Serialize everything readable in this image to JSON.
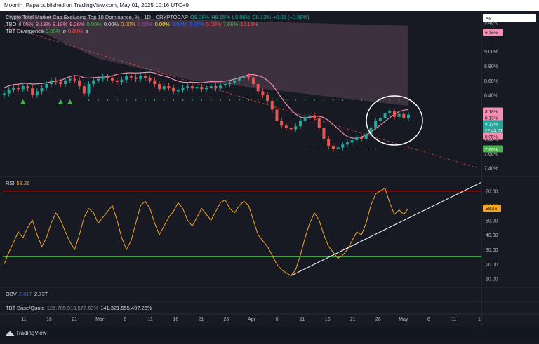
{
  "header": {
    "published": "Moonin_Papa published on TradingView.com, May 01, 2025 10:16 UTC+9"
  },
  "legend_main": {
    "title": "Crypto Total Market Cap Excluding Top 10 Dominance, % · 1D · CRYPTOCAP",
    "ohlc": [
      "O8.08%",
      "H8.15%",
      "L8.06%",
      "C8.13%",
      "+0.05 (+0.56%)"
    ],
    "tbo_label": "TBO",
    "tbo_values": [
      "8.05%",
      "8.13%",
      "8.18%",
      "9.26%",
      "0.00%",
      "0.00%",
      "0.00%",
      "0.00%",
      "0.00%",
      "0.00%",
      "0.00%",
      "0.00%",
      "7.66%",
      "12.15%"
    ],
    "tbt_label": "TBT Divergence",
    "tbt_values": [
      "0.00%",
      "ø",
      "0.00%",
      "ø"
    ]
  },
  "legend_rsi": {
    "label": "RSI",
    "value": "58.26"
  },
  "legend_obv": {
    "label": "OBV",
    "values": [
      "2.81T",
      "2.73T"
    ]
  },
  "legend_tbt_base": {
    "label": "TBT Base/Quote",
    "values": [
      "126,705,916,577.63%",
      "141,321,555,497.26%"
    ]
  },
  "price_axis": {
    "unit": "%",
    "ticks": [
      "9.40%",
      "9.00%",
      "8.80%",
      "8.60%",
      "8.40%",
      "7.80%",
      "7.60%",
      "7.40%"
    ],
    "badges": [
      {
        "text": "9.26%",
        "color": "#f48fb1",
        "textColor": "#131722"
      },
      {
        "text": "8.18%",
        "color": "#f48fb1",
        "textColor": "#131722"
      },
      {
        "text": "8.13%",
        "color": "#f48fb1",
        "textColor": "#131722"
      },
      {
        "text": "8.13%",
        "color": "#26a69a",
        "textColor": "#ffffff"
      },
      {
        "text": "22:43:51",
        "color": "#26a69a",
        "textColor": "#ffffff"
      },
      {
        "text": "8.05%",
        "color": "#f48fb1",
        "textColor": "#131722"
      },
      {
        "text": "7.66%",
        "color": "#4caf50",
        "textColor": "#ffffff"
      }
    ]
  },
  "rsi_axis": {
    "ticks": [
      "70.00",
      "60.00",
      "50.00",
      "40.00",
      "30.00",
      "20.00",
      "10.00"
    ],
    "badge": {
      "text": "58.26",
      "color": "#f5a623",
      "textColor": "#131722"
    }
  },
  "time_axis": {
    "ticks": [
      "11",
      "16",
      "21",
      "Mar",
      "6",
      "11",
      "16",
      "21",
      "26",
      "Apr",
      "6",
      "11",
      "16",
      "21",
      "26",
      "May",
      "6",
      "11",
      "1"
    ]
  },
  "footer": {
    "brand": "TradingView"
  },
  "colors": {
    "up": "#26a69a",
    "down": "#ef5350",
    "ma": "#f48fb1",
    "rsi": "#f5a623",
    "overbought": "#ef5350",
    "oversold": "#4caf50",
    "trend": "#ffffff"
  },
  "chart_data": [
    {
      "type": "candlestick",
      "title": "Crypto Total Market Cap Excluding Top 10 Dominance, %",
      "ylabel": "%",
      "ylim": [
        7.3,
        9.55
      ],
      "x_start": "2025-02-07",
      "close": [
        8.42,
        8.47,
        8.5,
        8.48,
        8.52,
        8.49,
        8.4,
        8.45,
        8.5,
        8.55,
        8.6,
        8.58,
        8.55,
        8.6,
        8.62,
        8.6,
        8.52,
        8.42,
        8.55,
        8.6,
        8.62,
        8.65,
        8.63,
        8.6,
        8.58,
        8.61,
        8.66,
        8.64,
        8.62,
        8.66,
        8.63,
        8.6,
        8.55,
        8.48,
        8.52,
        8.5,
        8.45,
        8.47,
        8.5,
        8.52,
        8.49,
        8.51,
        8.48,
        8.5,
        8.52,
        8.49,
        8.53,
        8.55,
        8.57,
        8.6,
        8.63,
        8.66,
        8.64,
        8.55,
        8.45,
        8.4,
        8.32,
        8.2,
        8.05,
        7.98,
        7.95,
        7.93,
        7.97,
        8.05,
        8.1,
        8.12,
        8.08,
        7.95,
        7.8,
        7.7,
        7.66,
        7.68,
        7.72,
        7.75,
        7.78,
        7.82,
        7.8,
        7.86,
        7.95,
        8.05,
        8.08,
        8.15,
        8.18,
        8.1,
        8.14,
        8.08,
        8.13
      ],
      "annotations": [
        "circle around recent consolidation",
        "ascending support trendline",
        "descending resistance trendline"
      ]
    },
    {
      "type": "line",
      "title": "RSI",
      "ylim": [
        5,
        78
      ],
      "levels": {
        "overbought": 70,
        "oversold": 25
      },
      "values": [
        20,
        28,
        35,
        42,
        38,
        45,
        50,
        40,
        32,
        38,
        48,
        55,
        50,
        42,
        35,
        30,
        40,
        52,
        58,
        55,
        48,
        52,
        56,
        60,
        50,
        38,
        30,
        36,
        48,
        60,
        63,
        58,
        48,
        40,
        46,
        52,
        56,
        62,
        58,
        50,
        46,
        52,
        58,
        54,
        50,
        56,
        62,
        64,
        58,
        55,
        60,
        63,
        60,
        50,
        40,
        36,
        32,
        26,
        20,
        16,
        14,
        12,
        16,
        26,
        38,
        48,
        55,
        50,
        40,
        32,
        28,
        24,
        26,
        30,
        36,
        42,
        40,
        48,
        60,
        68,
        70,
        72,
        62,
        54,
        57,
        54,
        58.26
      ],
      "current": 58.26
    }
  ]
}
